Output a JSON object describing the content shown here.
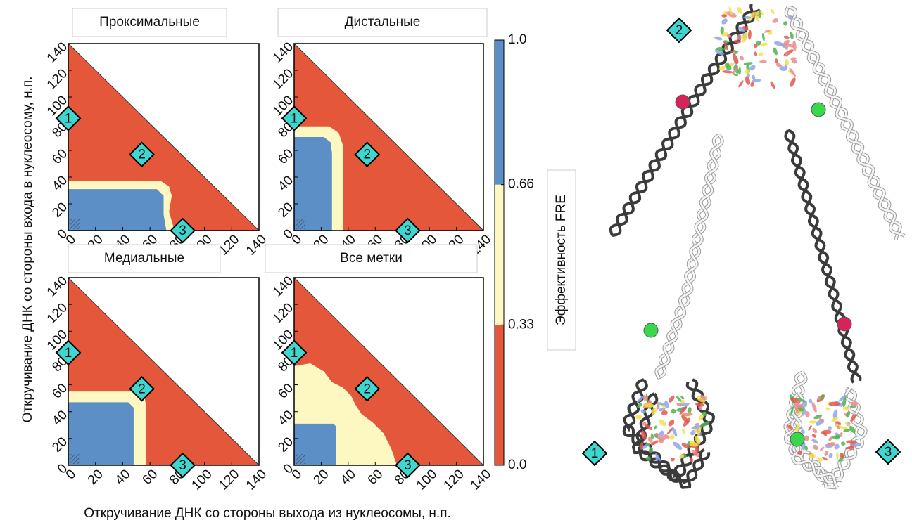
{
  "chart_data": [
    {
      "type": "region_map",
      "title": "Проксимальные",
      "xlim": [
        0,
        140
      ],
      "ylim": [
        0,
        140
      ],
      "xticks": [
        0,
        20,
        40,
        60,
        80,
        100,
        120,
        140
      ],
      "yticks": [
        0,
        20,
        40,
        60,
        80,
        100,
        120,
        140
      ],
      "regions": [
        {
          "color": "#e4573a",
          "points": [
            [
              0,
              0
            ],
            [
              0,
              140
            ],
            [
              140,
              0
            ]
          ]
        },
        {
          "color": "#fdf8c2",
          "points": [
            [
              0,
              0
            ],
            [
              0,
              37
            ],
            [
              68,
              37
            ],
            [
              74,
              33
            ],
            [
              76,
              26
            ],
            [
              74,
              14
            ],
            [
              78,
              0
            ]
          ]
        },
        {
          "color": "#5b8fc5",
          "points": [
            [
              0,
              0
            ],
            [
              0,
              31
            ],
            [
              65,
              31
            ],
            [
              70,
              26
            ],
            [
              70,
              12
            ],
            [
              72,
              0
            ]
          ]
        }
      ],
      "markers": [
        {
          "label": "1",
          "x": 0,
          "y": 84
        },
        {
          "label": "2",
          "x": 54,
          "y": 57
        },
        {
          "label": "3",
          "x": 84,
          "y": 0
        }
      ]
    },
    {
      "type": "region_map",
      "title": "Дистальные",
      "xlim": [
        0,
        140
      ],
      "ylim": [
        0,
        140
      ],
      "xticks": [
        0,
        20,
        40,
        60,
        80,
        100,
        120,
        140
      ],
      "yticks": [
        0,
        20,
        40,
        60,
        80,
        100,
        120,
        140
      ],
      "regions": [
        {
          "color": "#e4573a",
          "points": [
            [
              0,
              0
            ],
            [
              0,
              140
            ],
            [
              140,
              0
            ]
          ]
        },
        {
          "color": "#fdf8c2",
          "points": [
            [
              0,
              0
            ],
            [
              0,
              78
            ],
            [
              26,
              78
            ],
            [
              33,
              73
            ],
            [
              36,
              64
            ],
            [
              36,
              0
            ]
          ]
        },
        {
          "color": "#5b8fc5",
          "points": [
            [
              0,
              0
            ],
            [
              0,
              70
            ],
            [
              22,
              70
            ],
            [
              27,
              66
            ],
            [
              28,
              58
            ],
            [
              28,
              0
            ]
          ]
        }
      ],
      "markers": [
        {
          "label": "1",
          "x": 0,
          "y": 84
        },
        {
          "label": "2",
          "x": 54,
          "y": 57
        },
        {
          "label": "3",
          "x": 84,
          "y": 0
        }
      ]
    },
    {
      "type": "region_map",
      "title": "Медиальные",
      "xlim": [
        0,
        140
      ],
      "ylim": [
        0,
        140
      ],
      "xticks": [
        0,
        20,
        40,
        60,
        80,
        100,
        120,
        140
      ],
      "yticks": [
        0,
        20,
        40,
        60,
        80,
        100,
        120,
        140
      ],
      "regions": [
        {
          "color": "#e4573a",
          "points": [
            [
              0,
              0
            ],
            [
              0,
              140
            ],
            [
              140,
              0
            ]
          ]
        },
        {
          "color": "#fdf8c2",
          "points": [
            [
              0,
              0
            ],
            [
              0,
              55
            ],
            [
              52,
              55
            ],
            [
              56,
              51
            ],
            [
              57,
              45
            ],
            [
              57,
              0
            ]
          ]
        },
        {
          "color": "#5b8fc5",
          "points": [
            [
              0,
              0
            ],
            [
              0,
              47
            ],
            [
              44,
              47
            ],
            [
              48,
              43
            ],
            [
              48,
              0
            ]
          ]
        }
      ],
      "markers": [
        {
          "label": "1",
          "x": 0,
          "y": 84
        },
        {
          "label": "2",
          "x": 54,
          "y": 57
        },
        {
          "label": "3",
          "x": 84,
          "y": 0
        }
      ]
    },
    {
      "type": "region_map",
      "title": "Все метки",
      "xlim": [
        0,
        140
      ],
      "ylim": [
        0,
        140
      ],
      "xticks": [
        0,
        20,
        40,
        60,
        80,
        100,
        120,
        140
      ],
      "yticks": [
        0,
        20,
        40,
        60,
        80,
        100,
        120,
        140
      ],
      "regions": [
        {
          "color": "#e4573a",
          "points": [
            [
              0,
              0
            ],
            [
              0,
              140
            ],
            [
              140,
              0
            ]
          ]
        },
        {
          "color": "#fdf8c2",
          "points": [
            [
              0,
              0
            ],
            [
              0,
              74
            ],
            [
              12,
              76
            ],
            [
              22,
              70
            ],
            [
              28,
              62
            ],
            [
              36,
              58
            ],
            [
              42,
              52
            ],
            [
              46,
              44
            ],
            [
              50,
              38
            ],
            [
              58,
              32
            ],
            [
              66,
              24
            ],
            [
              72,
              12
            ],
            [
              76,
              0
            ]
          ]
        },
        {
          "color": "#5b8fc5",
          "points": [
            [
              0,
              0
            ],
            [
              0,
              31
            ],
            [
              29,
              31
            ],
            [
              31,
              29
            ],
            [
              31,
              0
            ]
          ]
        }
      ],
      "markers": [
        {
          "label": "1",
          "x": 0,
          "y": 84
        },
        {
          "label": "2",
          "x": 54,
          "y": 57
        },
        {
          "label": "3",
          "x": 84,
          "y": 0
        }
      ]
    }
  ],
  "x_label": "Откручивание ДНК со стороны выхода из нуклеосомы, н.п.",
  "y_label": "Откручивание ДНК со стороны входа в нуклеосому, н.п.",
  "colorbar": {
    "label": "Эффективность FRE",
    "ticks": [
      {
        "value": 0,
        "label": "0.0"
      },
      0.33,
      0.66,
      {
        "value": 1,
        "label": "1.0"
      }
    ],
    "colors": [
      "#e4573a",
      "#fdf8c2",
      "#5b8fc5"
    ]
  },
  "illustration": {
    "markers": [
      "2",
      "1",
      "3"
    ]
  }
}
